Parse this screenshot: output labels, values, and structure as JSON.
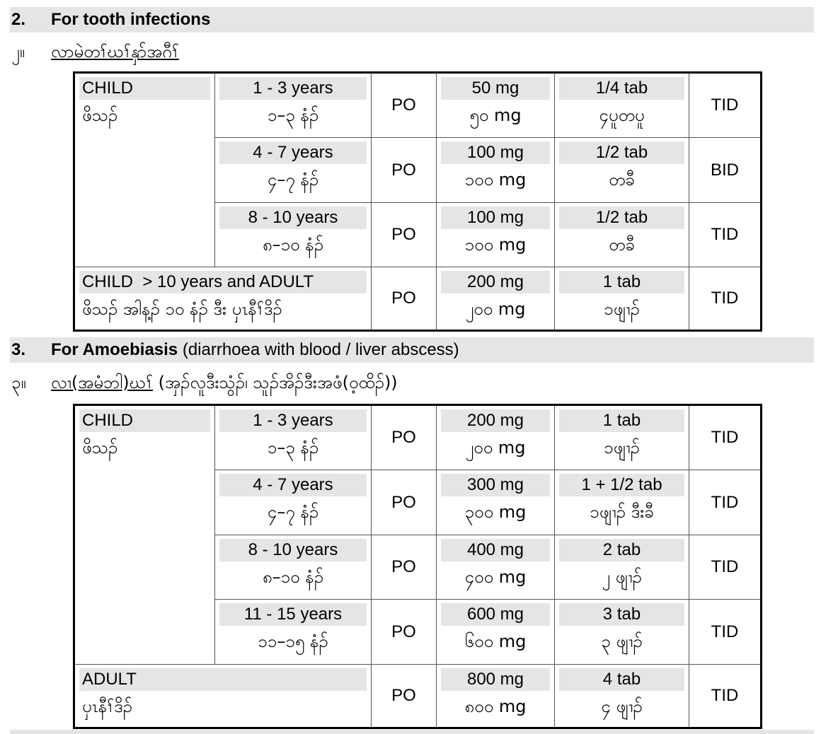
{
  "section2": {
    "number": "2.",
    "title": "For tooth infections",
    "my_number": "၂။",
    "my_title": "လာမဲတၢ်ဃၢ်နှာ်အဂီၢ်",
    "rows": [
      {
        "group": "CHILD",
        "group_my": "ဖိသၣ်",
        "age": "1 - 3 years",
        "age_my": "၁–၃ နံၣ်",
        "route": "PO",
        "dose": "50 mg",
        "dose_my": "၅၀ mg",
        "tab": "1/4 tab",
        "tab_my": "၄ပူတပူ",
        "freq": "TID"
      },
      {
        "age": "4 - 7 years",
        "age_my": "၄–၇ နံၣ်",
        "route": "PO",
        "dose": "100 mg",
        "dose_my": "၁၀၀ mg",
        "tab": "1/2 tab",
        "tab_my": "တခီ",
        "freq": "BID"
      },
      {
        "age": "8 - 10 years",
        "age_my": "၈–၁၀ နံၣ်",
        "route": "PO",
        "dose": "100 mg",
        "dose_my": "၁၀၀ mg",
        "tab": "1/2 tab",
        "tab_my": "တခီ",
        "freq": "TID"
      },
      {
        "group": "CHILD  > 10 years and ADULT",
        "group_my": "ဖိသၣ် အါန့ၣ် ၁၀ နံၣ် ဒီး ပှၤနီၢ်ဒိၣ်",
        "route": "PO",
        "dose": "200 mg",
        "dose_my": "၂၀၀ mg",
        "tab": "1 tab",
        "tab_my": "၁ဖျၢၣ်",
        "freq": "TID"
      }
    ]
  },
  "section3": {
    "number": "3.",
    "title_bold": "For Amoebiasis",
    "title_rest": " (diarrhoea with blood / liver abscess)",
    "my_number": "၃။",
    "my_title": "လၢ(အမံဘါ)ဃၢ်",
    "my_rest": " (အှၣ်လူဒီးသွံၣ်၊ သူၣ်အိၣ်ဒီးအဖံ(ဝ့ထိၣ်))",
    "rows": [
      {
        "group": "CHILD",
        "group_my": "ဖိသၣ်",
        "age": "1 - 3 years",
        "age_my": "၁–၃ နံၣ်",
        "route": "PO",
        "dose": "200 mg",
        "dose_my": "၂၀၀ mg",
        "tab": "1 tab",
        "tab_my": "၁ဖျၢၣ်",
        "freq": "TID"
      },
      {
        "age": "4 - 7 years",
        "age_my": "၄–၇ နံၣ်",
        "route": "PO",
        "dose": "300 mg",
        "dose_my": "၃၀၀ mg",
        "tab": "1 + 1/2 tab",
        "tab_my": "၁ဖျၢၣ် ဒီးခီ",
        "freq": "TID"
      },
      {
        "age": "8 - 10 years",
        "age_my": "၈–၁၀ နံၣ်",
        "route": "PO",
        "dose": "400 mg",
        "dose_my": "၄၀၀ mg",
        "tab": "2 tab",
        "tab_my": "၂ ဖျၢၣ်",
        "freq": "TID"
      },
      {
        "age": "11 - 15 years",
        "age_my": "၁၁–၁၅ နံၣ်",
        "route": "PO",
        "dose": "600 mg",
        "dose_my": "၆၀၀ mg",
        "tab": "3 tab",
        "tab_my": "၃ ဖျၢၣ်",
        "freq": "TID"
      },
      {
        "group": "ADULT",
        "group_my": "ပှၤနီၢ်ဒိၣ်",
        "route": "PO",
        "dose": "800 mg",
        "dose_my": "၈၀၀ mg",
        "tab": "4 tab",
        "tab_my": "၄ ဖျၢၣ်",
        "freq": "TID"
      }
    ]
  }
}
